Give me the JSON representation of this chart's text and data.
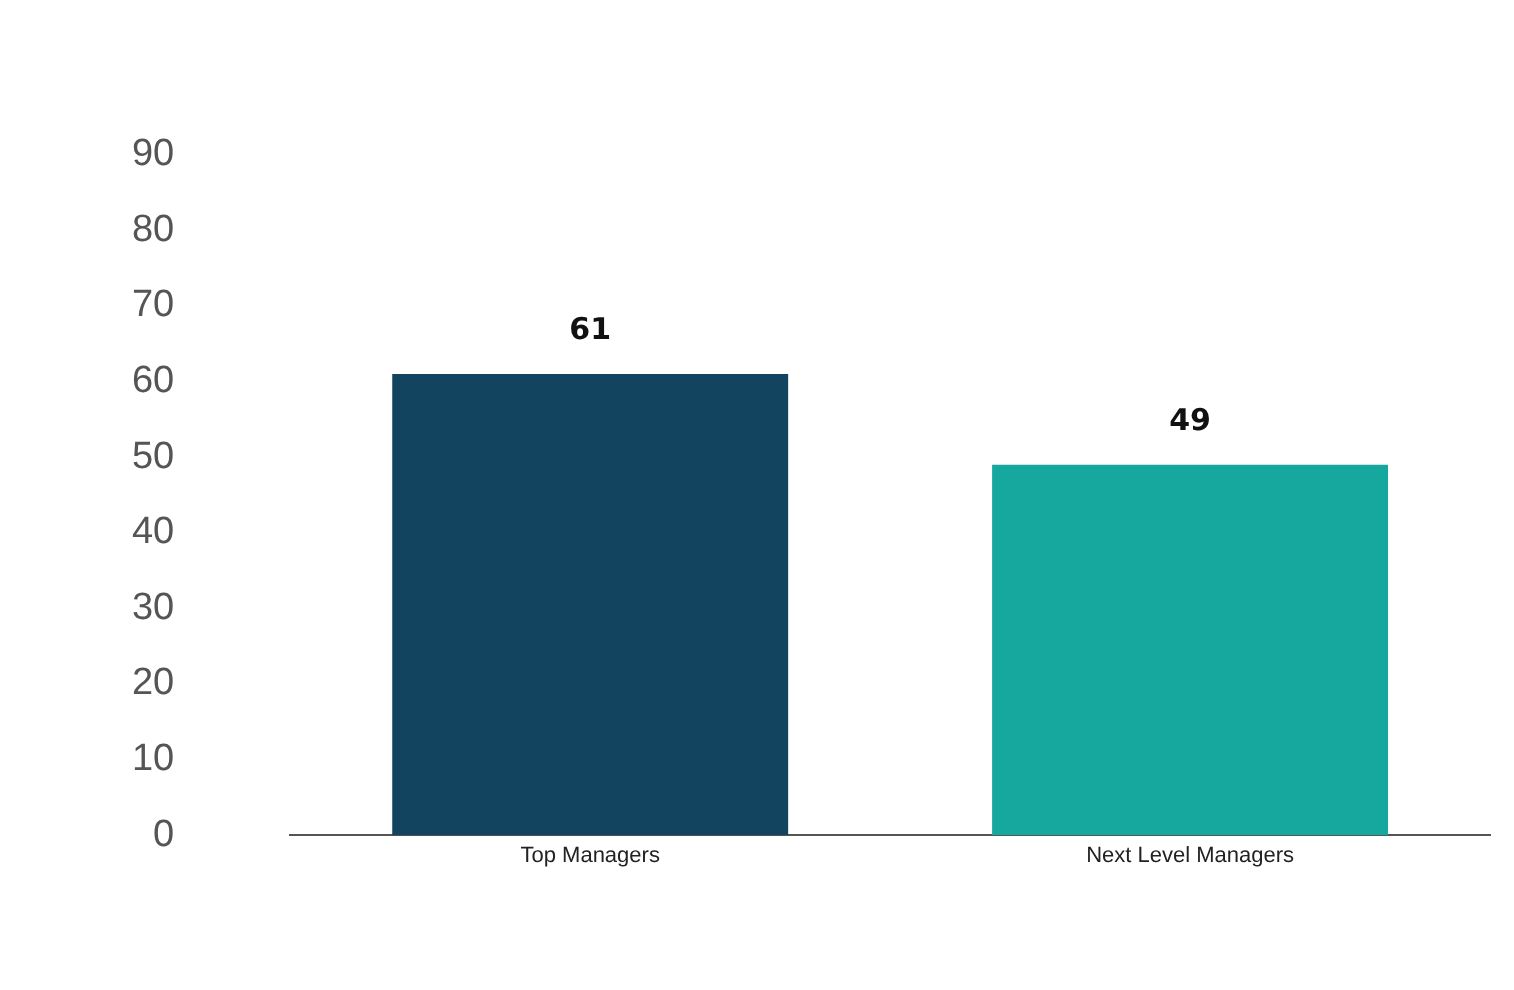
{
  "chart_data": {
    "type": "bar",
    "categories": [
      "Top Managers",
      "Next Level Managers"
    ],
    "values": [
      61,
      49
    ],
    "colors": [
      "#12435f",
      "#16a89e"
    ],
    "ylim": [
      0,
      90
    ],
    "yticks": [
      0,
      10,
      20,
      30,
      40,
      50,
      60,
      70,
      80,
      90
    ],
    "grid": false,
    "legend": false,
    "data_labels": true
  }
}
